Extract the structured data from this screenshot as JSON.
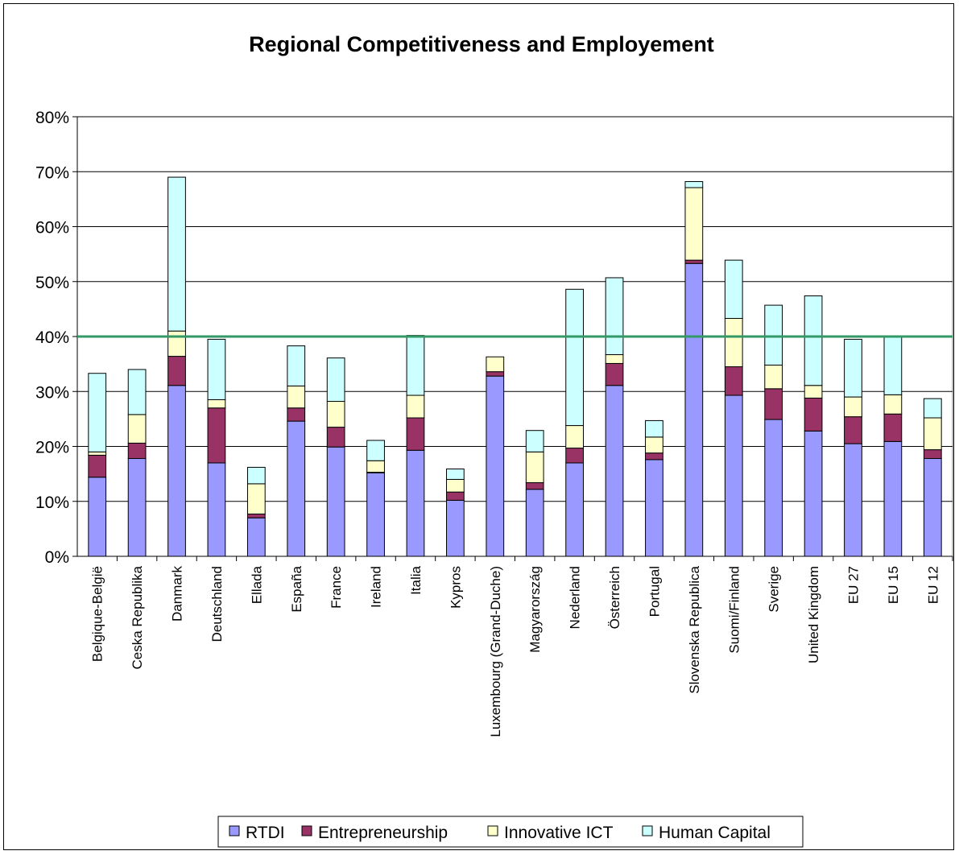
{
  "chart_data": {
    "type": "bar",
    "stacked": true,
    "title": "Regional Competitiveness and Employement",
    "xlabel": "",
    "ylabel": "",
    "ylim": [
      0,
      0.8
    ],
    "y_ticks": [
      "0%",
      "10%",
      "20%",
      "30%",
      "40%",
      "50%",
      "60%",
      "70%",
      "80%"
    ],
    "grid": true,
    "legend": "bottom",
    "reference_line": {
      "value": 0.4,
      "color": "#339966"
    },
    "categories": [
      "Belgique-België",
      "Ceska Republika",
      "Danmark",
      "Deutschland",
      "Ellada",
      "España",
      "France",
      "Ireland",
      "Italia",
      "Kypros",
      "Luxembourg (Grand-Duche)",
      "Magyarország",
      "Nederland",
      "Österreich",
      "Portugal",
      "Slovenska Republica",
      "Suomi/Finland",
      "Sverige",
      "United Kingdom",
      "EU 27",
      "EU 15",
      "EU 12"
    ],
    "series": [
      {
        "name": "RTDI",
        "color": "#9999ff",
        "values": [
          0.144,
          0.178,
          0.311,
          0.17,
          0.07,
          0.246,
          0.199,
          0.152,
          0.193,
          0.102,
          0.328,
          0.122,
          0.17,
          0.311,
          0.176,
          0.533,
          0.293,
          0.249,
          0.228,
          0.205,
          0.209,
          0.178
        ]
      },
      {
        "name": "Entrepreneurship",
        "color": "#993366",
        "values": [
          0.04,
          0.028,
          0.053,
          0.1,
          0.007,
          0.024,
          0.036,
          0.001,
          0.059,
          0.015,
          0.008,
          0.012,
          0.027,
          0.04,
          0.012,
          0.006,
          0.052,
          0.056,
          0.06,
          0.049,
          0.05,
          0.016
        ]
      },
      {
        "name": "Innovative ICT",
        "color": "#ffffcc",
        "values": [
          0.006,
          0.052,
          0.046,
          0.015,
          0.055,
          0.04,
          0.047,
          0.021,
          0.041,
          0.023,
          0.027,
          0.056,
          0.041,
          0.016,
          0.029,
          0.132,
          0.088,
          0.043,
          0.023,
          0.036,
          0.035,
          0.058
        ]
      },
      {
        "name": "Human Capital",
        "color": "#ccffff",
        "values": [
          0.143,
          0.082,
          0.28,
          0.11,
          0.03,
          0.073,
          0.079,
          0.037,
          0.109,
          0.019,
          0.0,
          0.039,
          0.248,
          0.14,
          0.03,
          0.011,
          0.106,
          0.109,
          0.163,
          0.105,
          0.107,
          0.035
        ]
      }
    ]
  }
}
